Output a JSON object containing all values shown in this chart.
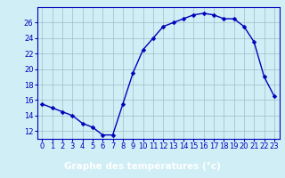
{
  "x": [
    0,
    1,
    2,
    3,
    4,
    5,
    6,
    7,
    8,
    9,
    10,
    11,
    12,
    13,
    14,
    15,
    16,
    17,
    18,
    19,
    20,
    21,
    22,
    23
  ],
  "y": [
    15.5,
    15.0,
    14.5,
    14.0,
    13.0,
    12.5,
    11.5,
    11.5,
    15.5,
    19.5,
    22.5,
    24.0,
    25.5,
    26.0,
    26.5,
    27.0,
    27.2,
    27.0,
    26.5,
    26.5,
    25.5,
    23.5,
    19.0,
    16.5
  ],
  "line_color": "#0000bb",
  "marker": "D",
  "marker_size": 2.5,
  "bg_color": "#d0eef5",
  "grid_color": "#a0bcc8",
  "xlabel": "Graphe des températures (°c)",
  "xlabel_color": "#0000bb",
  "xlabel_fontsize": 7.5,
  "xlabel_fontweight": "bold",
  "ylim": [
    11,
    28
  ],
  "yticks": [
    12,
    14,
    16,
    18,
    20,
    22,
    24,
    26
  ],
  "xlim": [
    -0.5,
    23.5
  ],
  "xticks": [
    0,
    1,
    2,
    3,
    4,
    5,
    6,
    7,
    8,
    9,
    10,
    11,
    12,
    13,
    14,
    15,
    16,
    17,
    18,
    19,
    20,
    21,
    22,
    23
  ],
  "tick_color": "#0000bb",
  "tick_fontsize": 6,
  "axis_color": "#0000bb",
  "bottom_bar_color": "#0000bb",
  "bottom_bar_height": 0.13
}
